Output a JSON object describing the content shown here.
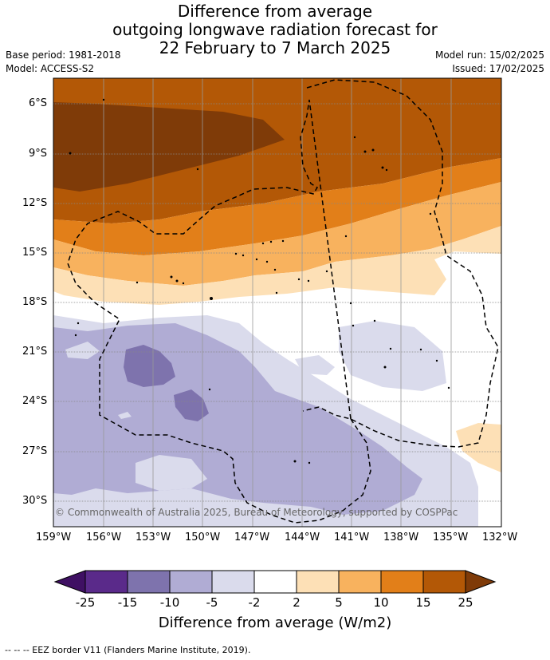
{
  "header": {
    "title_lines": [
      "Difference from average",
      "outgoing longwave radiation forecast for",
      "22 February to 7 March 2025"
    ],
    "base_period": "Base period: 1981-2018",
    "model": "Model: ACCESS-S2",
    "model_run": "Model run: 15/02/2025",
    "issued": "Issued: 17/02/2025"
  },
  "map": {
    "latitude_labels": [
      "6°S",
      "9°S",
      "12°S",
      "15°S",
      "18°S",
      "21°S",
      "24°S",
      "27°S",
      "30°S"
    ],
    "longitude_labels": [
      "159°W",
      "156°W",
      "153°W",
      "150°W",
      "147°W",
      "144°W",
      "141°W",
      "138°W",
      "135°W",
      "132°W"
    ],
    "copyright": "© Commonwealth of Australia 2025, Bureau of Meteorology, supported by COSPPac"
  },
  "colorbar": {
    "labels": [
      "-25",
      "-15",
      "-10",
      "-5",
      "-2",
      "2",
      "5",
      "10",
      "15",
      "25"
    ],
    "colors": [
      "#3f1063",
      "#5a2a8a",
      "#7e73ad",
      "#b0acd4",
      "#dadbec",
      "#ffffff",
      "#fde0b6",
      "#f8b25e",
      "#e27f19",
      "#b35806",
      "#7f3b08"
    ],
    "title": "Difference from average (W/m2)"
  },
  "footer": {
    "legend_text": "--  --  -- EEZ border V11 (Flanders Marine Institute, 2019)."
  }
}
